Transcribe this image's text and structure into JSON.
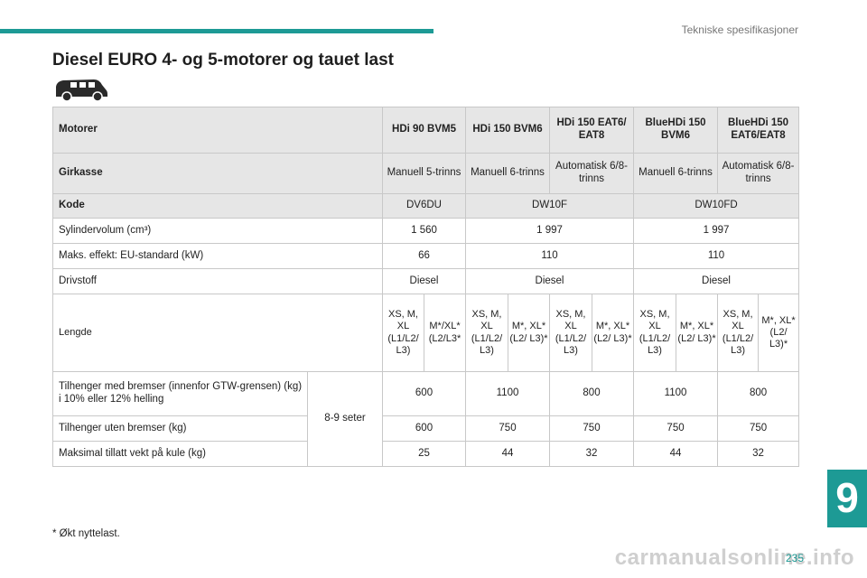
{
  "header": {
    "section_title": "Tekniske spesifikasjoner"
  },
  "title": "Diesel EURO 4- og 5-motorer og tauet last",
  "icons": {
    "vehicle": "van-icon"
  },
  "table": {
    "header": {
      "label": "Motorer",
      "engines": [
        "HDi 90 BVM5",
        "HDi 150 BVM6",
        "HDi 150 EAT6/ EAT8",
        "BlueHDi 150 BVM6",
        "BlueHDi 150 EAT6/EAT8"
      ]
    },
    "gearbox": {
      "label": "Girkasse",
      "values": [
        "Manuell 5-trinns",
        "Manuell 6-trinns",
        "Automatisk 6/8-trinns",
        "Manuell 6-trinns",
        "Automatisk 6/8-trinns"
      ]
    },
    "code": {
      "label": "Kode",
      "values": [
        "DV6DU",
        "DW10F",
        "DW10FD"
      ]
    },
    "displacement": {
      "label": "Sylindervolum (cm³)",
      "values": [
        "1 560",
        "1 997",
        "1 997"
      ]
    },
    "power": {
      "label": "Maks. effekt: EU-standard (kW)",
      "values": [
        "66",
        "110",
        "110"
      ]
    },
    "fuel": {
      "label": "Drivstoff",
      "values": [
        "Diesel",
        "Diesel",
        "Diesel"
      ]
    },
    "length": {
      "label": "Lengde",
      "values": [
        "XS, M, XL (L1/L2/ L3)",
        "M*/XL* (L2/L3*",
        "XS, M, XL (L1/L2/ L3)",
        "M*, XL* (L2/ L3)*",
        "XS, M, XL (L1/L2/ L3)",
        "M*, XL* (L2/ L3)*",
        "XS, M, XL (L1/L2/ L3)",
        "M*, XL* (L2/ L3)*",
        "XS, M, XL (L1/L2/ L3)",
        "M*, XL* (L2/ L3)*"
      ]
    },
    "seats": "8-9 seter",
    "braked_trailer": {
      "label": "Tilhenger med bremser (innenfor GTW-grensen) (kg) i 10% eller 12% helling",
      "values": [
        "600",
        "1100",
        "800",
        "1100",
        "800"
      ]
    },
    "unbraked_trailer": {
      "label": "Tilhenger uten bremser (kg)",
      "values": [
        "600",
        "750",
        "750",
        "750",
        "750"
      ]
    },
    "max_ball": {
      "label": "Maksimal tillatt vekt på kule (kg)",
      "values": [
        "25",
        "44",
        "32",
        "44",
        "32"
      ]
    }
  },
  "chapter": "9",
  "footnote": "*  Økt nyttelast.",
  "page_number": "235",
  "watermark": "carmanualsonline.info"
}
